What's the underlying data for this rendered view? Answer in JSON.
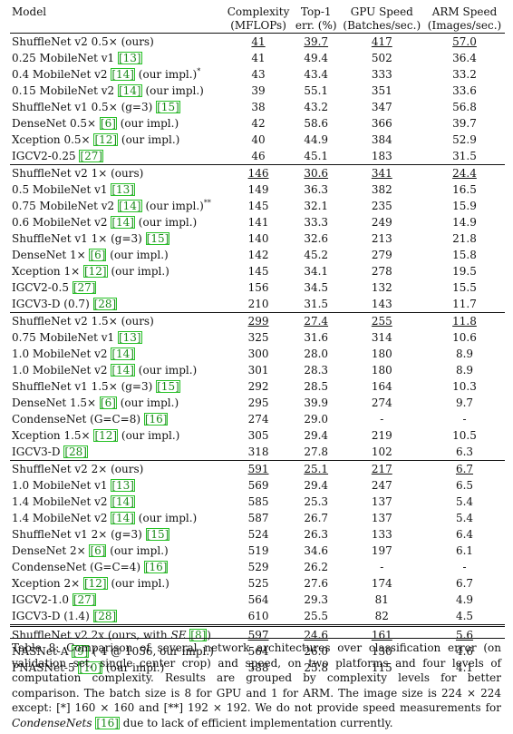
{
  "headers": {
    "model": "Model",
    "complexity": [
      "Complexity",
      "(MFLOPs)"
    ],
    "top1": [
      "Top-1",
      "err. (%)"
    ],
    "gpu": [
      "GPU Speed",
      "(Batches/sec.)"
    ],
    "arm": [
      "ARM Speed",
      "(Images/sec.)"
    ]
  },
  "groups": [
    {
      "rows": [
        {
          "model": [
            [
              "ShuffleNet v2 0.5× (ours)",
              "t"
            ]
          ],
          "complexity": "41",
          "top1": "39.7",
          "gpu": "417",
          "arm": "57.0",
          "u": [
            "complexity",
            "top1",
            "gpu",
            "arm"
          ],
          "bold": [
            "top1",
            "arm"
          ]
        },
        {
          "model": [
            [
              "0.25 MobileNet v1 ",
              "t"
            ],
            [
              "[13]",
              "c"
            ]
          ],
          "complexity": "41",
          "top1": "49.4",
          "gpu": "502",
          "arm": "36.4",
          "bold": [
            "gpu"
          ]
        },
        {
          "model": [
            [
              "0.4 MobileNet v2 ",
              "t"
            ],
            [
              "[14]",
              "c"
            ],
            [
              " (our impl.)",
              "t"
            ],
            [
              "*",
              "s"
            ]
          ],
          "complexity": "43",
          "top1": "43.4",
          "gpu": "333",
          "arm": "33.2"
        },
        {
          "model": [
            [
              "0.15 MobileNet v2 ",
              "t"
            ],
            [
              "[14]",
              "c"
            ],
            [
              " (our impl.)",
              "t"
            ]
          ],
          "complexity": "39",
          "top1": "55.1",
          "gpu": "351",
          "arm": "33.6"
        },
        {
          "model": [
            [
              "ShuffleNet v1 0.5× (g=3) ",
              "t"
            ],
            [
              "[15]",
              "c"
            ]
          ],
          "complexity": "38",
          "top1": "43.2",
          "gpu": "347",
          "arm": "56.8"
        },
        {
          "model": [
            [
              "DenseNet 0.5× ",
              "t"
            ],
            [
              "[6]",
              "c"
            ],
            [
              " (our impl.)",
              "t"
            ]
          ],
          "complexity": "42",
          "top1": "58.6",
          "gpu": "366",
          "arm": "39.7"
        },
        {
          "model": [
            [
              "Xception 0.5× ",
              "t"
            ],
            [
              "[12]",
              "c"
            ],
            [
              " (our impl.)",
              "t"
            ]
          ],
          "complexity": "40",
          "top1": "44.9",
          "gpu": "384",
          "arm": "52.9"
        },
        {
          "model": [
            [
              "IGCV2-0.25 ",
              "t"
            ],
            [
              "[27]",
              "c"
            ]
          ],
          "complexity": "46",
          "top1": "45.1",
          "gpu": "183",
          "arm": "31.5"
        }
      ]
    },
    {
      "rows": [
        {
          "model": [
            [
              "ShuffleNet v2 1× (ours)",
              "t"
            ]
          ],
          "complexity": "146",
          "top1": "30.6",
          "gpu": "341",
          "arm": "24.4",
          "u": [
            "complexity",
            "top1",
            "gpu",
            "arm"
          ],
          "bold": [
            "top1",
            "arm"
          ]
        },
        {
          "model": [
            [
              "0.5 MobileNet v1 ",
              "t"
            ],
            [
              "[13]",
              "c"
            ]
          ],
          "complexity": "149",
          "top1": "36.3",
          "gpu": "382",
          "arm": "16.5",
          "bold": [
            "gpu"
          ]
        },
        {
          "model": [
            [
              "0.75 MobileNet v2 ",
              "t"
            ],
            [
              "[14]",
              "c"
            ],
            [
              " (our impl.)",
              "t"
            ],
            [
              "**",
              "s"
            ]
          ],
          "complexity": "145",
          "top1": "32.1",
          "gpu": "235",
          "arm": "15.9"
        },
        {
          "model": [
            [
              "0.6 MobileNet v2 ",
              "t"
            ],
            [
              "[14]",
              "c"
            ],
            [
              " (our impl.)",
              "t"
            ]
          ],
          "complexity": "141",
          "top1": "33.3",
          "gpu": "249",
          "arm": "14.9"
        },
        {
          "model": [
            [
              "ShuffleNet v1 1× (g=3) ",
              "t"
            ],
            [
              "[15]",
              "c"
            ]
          ],
          "complexity": "140",
          "top1": "32.6",
          "gpu": "213",
          "arm": "21.8"
        },
        {
          "model": [
            [
              "DenseNet 1× ",
              "t"
            ],
            [
              "[6]",
              "c"
            ],
            [
              " (our impl.)",
              "t"
            ]
          ],
          "complexity": "142",
          "top1": "45.2",
          "gpu": "279",
          "arm": "15.8"
        },
        {
          "model": [
            [
              "Xception 1× ",
              "t"
            ],
            [
              "[12]",
              "c"
            ],
            [
              " (our impl.)",
              "t"
            ]
          ],
          "complexity": "145",
          "top1": "34.1",
          "gpu": "278",
          "arm": "19.5"
        },
        {
          "model": [
            [
              "IGCV2-0.5 ",
              "t"
            ],
            [
              "[27]",
              "c"
            ]
          ],
          "complexity": "156",
          "top1": "34.5",
          "gpu": "132",
          "arm": "15.5"
        },
        {
          "model": [
            [
              "IGCV3-D (0.7) ",
              "t"
            ],
            [
              "[28]",
              "c"
            ]
          ],
          "complexity": "210",
          "top1": "31.5",
          "gpu": "143",
          "arm": "11.7"
        }
      ]
    },
    {
      "rows": [
        {
          "model": [
            [
              "ShuffleNet v2 1.5× (ours)",
              "t"
            ]
          ],
          "complexity": "299",
          "top1": "27.4",
          "gpu": "255",
          "arm": "11.8",
          "u": [
            "complexity",
            "top1",
            "gpu",
            "arm"
          ],
          "bold": [
            "top1",
            "arm"
          ]
        },
        {
          "model": [
            [
              "0.75 MobileNet v1 ",
              "t"
            ],
            [
              "[13]",
              "c"
            ]
          ],
          "complexity": "325",
          "top1": "31.6",
          "gpu": "314",
          "arm": "10.6",
          "bold": [
            "gpu"
          ]
        },
        {
          "model": [
            [
              "1.0 MobileNet v2 ",
              "t"
            ],
            [
              "[14]",
              "c"
            ]
          ],
          "complexity": "300",
          "top1": "28.0",
          "gpu": "180",
          "arm": "8.9"
        },
        {
          "model": [
            [
              "1.0 MobileNet v2 ",
              "t"
            ],
            [
              "[14]",
              "c"
            ],
            [
              " (our impl.)",
              "t"
            ]
          ],
          "complexity": "301",
          "top1": "28.3",
          "gpu": "180",
          "arm": "8.9"
        },
        {
          "model": [
            [
              "ShuffleNet v1 1.5× (g=3) ",
              "t"
            ],
            [
              "[15]",
              "c"
            ]
          ],
          "complexity": "292",
          "top1": "28.5",
          "gpu": "164",
          "arm": "10.3"
        },
        {
          "model": [
            [
              "DenseNet 1.5× ",
              "t"
            ],
            [
              "[6]",
              "c"
            ],
            [
              " (our impl.)",
              "t"
            ]
          ],
          "complexity": "295",
          "top1": "39.9",
          "gpu": "274",
          "arm": "9.7"
        },
        {
          "model": [
            [
              "CondenseNet (G=C=8) ",
              "t"
            ],
            [
              "[16]",
              "c"
            ]
          ],
          "complexity": "274",
          "top1": "29.0",
          "gpu": "-",
          "arm": "-"
        },
        {
          "model": [
            [
              "Xception 1.5× ",
              "t"
            ],
            [
              "[12]",
              "c"
            ],
            [
              " (our impl.)",
              "t"
            ]
          ],
          "complexity": "305",
          "top1": "29.4",
          "gpu": "219",
          "arm": "10.5"
        },
        {
          "model": [
            [
              "IGCV3-D ",
              "t"
            ],
            [
              "[28]",
              "c"
            ]
          ],
          "complexity": "318",
          "top1": "27.8",
          "gpu": "102",
          "arm": "6.3"
        }
      ]
    },
    {
      "rows": [
        {
          "model": [
            [
              "ShuffleNet v2 2× (ours)",
              "t"
            ]
          ],
          "complexity": "591",
          "top1": "25.1",
          "gpu": "217",
          "arm": "6.7",
          "u": [
            "complexity",
            "top1",
            "gpu",
            "arm"
          ],
          "bold": [
            "top1",
            "arm"
          ]
        },
        {
          "model": [
            [
              "1.0 MobileNet v1 ",
              "t"
            ],
            [
              "[13]",
              "c"
            ]
          ],
          "complexity": "569",
          "top1": "29.4",
          "gpu": "247",
          "arm": "6.5",
          "bold": [
            "gpu"
          ]
        },
        {
          "model": [
            [
              "1.4 MobileNet v2 ",
              "t"
            ],
            [
              "[14]",
              "c"
            ]
          ],
          "complexity": "585",
          "top1": "25.3",
          "gpu": "137",
          "arm": "5.4"
        },
        {
          "model": [
            [
              "1.4 MobileNet v2 ",
              "t"
            ],
            [
              "[14]",
              "c"
            ],
            [
              " (our impl.)",
              "t"
            ]
          ],
          "complexity": "587",
          "top1": "26.7",
          "gpu": "137",
          "arm": "5.4"
        },
        {
          "model": [
            [
              "ShuffleNet v1 2× (g=3) ",
              "t"
            ],
            [
              "[15]",
              "c"
            ]
          ],
          "complexity": "524",
          "top1": "26.3",
          "gpu": "133",
          "arm": "6.4"
        },
        {
          "model": [
            [
              "DenseNet 2× ",
              "t"
            ],
            [
              "[6]",
              "c"
            ],
            [
              " (our impl.)",
              "t"
            ]
          ],
          "complexity": "519",
          "top1": "34.6",
          "gpu": "197",
          "arm": "6.1"
        },
        {
          "model": [
            [
              "CondenseNet (G=C=4) ",
              "t"
            ],
            [
              "[16]",
              "c"
            ]
          ],
          "complexity": "529",
          "top1": "26.2",
          "gpu": "-",
          "arm": "-"
        },
        {
          "model": [
            [
              "Xception 2× ",
              "t"
            ],
            [
              "[12]",
              "c"
            ],
            [
              " (our impl.)",
              "t"
            ]
          ],
          "complexity": "525",
          "top1": "27.6",
          "gpu": "174",
          "arm": "6.7",
          "bold": [
            "arm"
          ]
        },
        {
          "model": [
            [
              "IGCV2-1.0 ",
              "t"
            ],
            [
              "[27]",
              "c"
            ]
          ],
          "complexity": "564",
          "top1": "29.3",
          "gpu": "81",
          "arm": "4.9"
        },
        {
          "model": [
            [
              "IGCV3-D (1.4) ",
              "t"
            ],
            [
              "[28]",
              "c"
            ]
          ],
          "complexity": "610",
          "top1": "25.5",
          "gpu": "82",
          "arm": "4.5"
        }
      ]
    },
    {
      "double": true,
      "rows": [
        {
          "model": [
            [
              "ShuffleNet v2 2x (ours, with ",
              "t"
            ],
            [
              "SE",
              "i"
            ],
            [
              " ",
              "t"
            ],
            [
              "[8]",
              "c"
            ],
            [
              ")",
              "t"
            ]
          ],
          "complexity": "597",
          "top1": "24.6",
          "gpu": "161",
          "arm": "5.6",
          "u": [
            "complexity",
            "top1",
            "gpu",
            "arm"
          ],
          "bold": [
            "top1",
            "gpu",
            "arm"
          ]
        },
        {
          "model": [
            [
              "NASNet-A ",
              "t"
            ],
            [
              "[9]",
              "c"
            ],
            [
              " ( 4 @ 1056, our impl.)",
              "t"
            ]
          ],
          "complexity": "564",
          "top1": "26.0",
          "gpu": "130",
          "arm": "4.6"
        },
        {
          "model": [
            [
              "PNASNet-5 ",
              "t"
            ],
            [
              "[10]",
              "c"
            ],
            [
              " (our impl.)",
              "t"
            ]
          ],
          "complexity": "588",
          "top1": "25.8",
          "gpu": "115",
          "arm": "4.1"
        }
      ]
    }
  ],
  "caption": {
    "a": "Table 8: Comparison of several network architectures over classification error (on validation set, single center crop) and speed, on two platforms and four levels of computation complexity. Results are grouped by complexity levels for better comparison. The batch size is 8 for GPU and 1 for ARM. The image size is 224 × 224 except: [*] 160 × 160 and [**] 192 × 192. We do not provide speed measurements for ",
    "b": "CondenseNets",
    "c": " ",
    "cite": "[16]",
    "d": " due to lack of efficient implementation currently."
  }
}
